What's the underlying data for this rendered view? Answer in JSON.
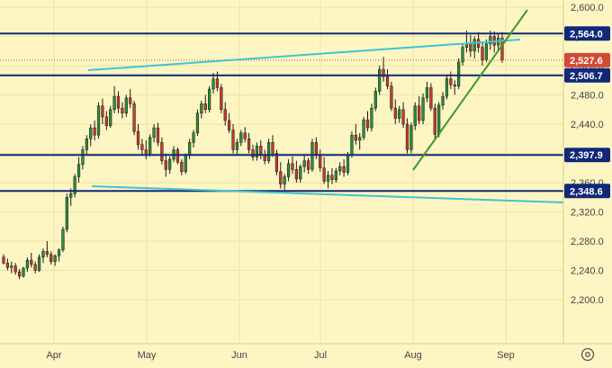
{
  "colors": {
    "background": "#fdf6c3",
    "grid": "#ece3a6",
    "up": "#2e8b3a",
    "down": "#c23b2a",
    "level": "#10287a",
    "channel": "#3fc4d4",
    "trend": "#3c9a2a",
    "current": "#d24a36"
  },
  "chart_data": {
    "type": "candlestick",
    "y_ticks": [
      "2,600.0",
      "2,560.0",
      "2,520.0",
      "2,480.0",
      "2,440.0",
      "2,400.0",
      "2,360.0",
      "2,320.0",
      "2,280.0",
      "2,240.0",
      "2,200.0"
    ],
    "x_ticks": [
      "Apr",
      "May",
      "Jun",
      "Jul",
      "Aug",
      "Sep"
    ],
    "ylim": [
      2170,
      2610
    ],
    "levels": [
      {
        "label": "2,564.0",
        "value": 2564.0
      },
      {
        "label": "2,506.7",
        "value": 2506.7
      },
      {
        "label": "2,397.9",
        "value": 2397.9
      },
      {
        "label": "2,348.6",
        "value": 2348.6
      }
    ],
    "current_price": {
      "label": "2,527.6",
      "value": 2527.6
    },
    "candles": [
      [
        2258,
        2262,
        2248,
        2250
      ],
      [
        2250,
        2256,
        2240,
        2244
      ],
      [
        2244,
        2252,
        2236,
        2246
      ],
      [
        2246,
        2250,
        2234,
        2238
      ],
      [
        2238,
        2242,
        2228,
        2232
      ],
      [
        2232,
        2245,
        2230,
        2243
      ],
      [
        2243,
        2258,
        2238,
        2254
      ],
      [
        2254,
        2264,
        2244,
        2248
      ],
      [
        2248,
        2252,
        2236,
        2240
      ],
      [
        2240,
        2262,
        2238,
        2258
      ],
      [
        2258,
        2270,
        2250,
        2266
      ],
      [
        2266,
        2280,
        2258,
        2262
      ],
      [
        2262,
        2266,
        2248,
        2252
      ],
      [
        2252,
        2262,
        2246,
        2260
      ],
      [
        2260,
        2270,
        2252,
        2268
      ],
      [
        2268,
        2300,
        2265,
        2296
      ],
      [
        2296,
        2345,
        2292,
        2340
      ],
      [
        2340,
        2352,
        2328,
        2345
      ],
      [
        2345,
        2372,
        2340,
        2368
      ],
      [
        2368,
        2395,
        2360,
        2385
      ],
      [
        2385,
        2410,
        2378,
        2405
      ],
      [
        2405,
        2425,
        2398,
        2420
      ],
      [
        2420,
        2440,
        2410,
        2435
      ],
      [
        2435,
        2445,
        2418,
        2425
      ],
      [
        2425,
        2470,
        2420,
        2465
      ],
      [
        2465,
        2475,
        2440,
        2450
      ],
      [
        2450,
        2458,
        2432,
        2438
      ],
      [
        2438,
        2465,
        2435,
        2460
      ],
      [
        2460,
        2492,
        2455,
        2478
      ],
      [
        2478,
        2485,
        2455,
        2462
      ],
      [
        2462,
        2470,
        2448,
        2455
      ],
      [
        2455,
        2480,
        2450,
        2476
      ],
      [
        2476,
        2488,
        2462,
        2468
      ],
      [
        2468,
        2472,
        2425,
        2430
      ],
      [
        2430,
        2440,
        2405,
        2412
      ],
      [
        2412,
        2420,
        2398,
        2405
      ],
      [
        2405,
        2418,
        2392,
        2400
      ],
      [
        2400,
        2426,
        2396,
        2422
      ],
      [
        2422,
        2440,
        2415,
        2435
      ],
      [
        2435,
        2442,
        2410,
        2415
      ],
      [
        2415,
        2422,
        2385,
        2390
      ],
      [
        2390,
        2400,
        2368,
        2378
      ],
      [
        2378,
        2396,
        2372,
        2392
      ],
      [
        2392,
        2410,
        2388,
        2405
      ],
      [
        2405,
        2408,
        2385,
        2388
      ],
      [
        2388,
        2392,
        2370,
        2375
      ],
      [
        2375,
        2400,
        2372,
        2398
      ],
      [
        2398,
        2420,
        2392,
        2415
      ],
      [
        2415,
        2432,
        2408,
        2428
      ],
      [
        2428,
        2460,
        2424,
        2455
      ],
      [
        2455,
        2472,
        2448,
        2468
      ],
      [
        2468,
        2480,
        2455,
        2460
      ],
      [
        2460,
        2492,
        2456,
        2488
      ],
      [
        2488,
        2510,
        2482,
        2502
      ],
      [
        2502,
        2512,
        2485,
        2490
      ],
      [
        2490,
        2495,
        2455,
        2460
      ],
      [
        2460,
        2470,
        2438,
        2445
      ],
      [
        2445,
        2455,
        2428,
        2432
      ],
      [
        2432,
        2440,
        2400,
        2405
      ],
      [
        2405,
        2420,
        2398,
        2415
      ],
      [
        2415,
        2432,
        2410,
        2428
      ],
      [
        2428,
        2436,
        2415,
        2420
      ],
      [
        2420,
        2428,
        2400,
        2405
      ],
      [
        2405,
        2412,
        2390,
        2395
      ],
      [
        2395,
        2415,
        2390,
        2410
      ],
      [
        2410,
        2418,
        2392,
        2398
      ],
      [
        2398,
        2405,
        2385,
        2390
      ],
      [
        2390,
        2420,
        2386,
        2415
      ],
      [
        2415,
        2425,
        2395,
        2400
      ],
      [
        2400,
        2405,
        2370,
        2375
      ],
      [
        2375,
        2388,
        2352,
        2358
      ],
      [
        2358,
        2372,
        2350,
        2368
      ],
      [
        2368,
        2392,
        2362,
        2386
      ],
      [
        2386,
        2396,
        2372,
        2378
      ],
      [
        2378,
        2390,
        2360,
        2365
      ],
      [
        2365,
        2385,
        2360,
        2382
      ],
      [
        2382,
        2398,
        2374,
        2390
      ],
      [
        2390,
        2394,
        2372,
        2378
      ],
      [
        2378,
        2420,
        2375,
        2415
      ],
      [
        2415,
        2422,
        2392,
        2398
      ],
      [
        2398,
        2405,
        2375,
        2380
      ],
      [
        2380,
        2395,
        2358,
        2362
      ],
      [
        2362,
        2376,
        2352,
        2370
      ],
      [
        2370,
        2380,
        2358,
        2364
      ],
      [
        2364,
        2380,
        2360,
        2376
      ],
      [
        2376,
        2388,
        2370,
        2382
      ],
      [
        2382,
        2392,
        2368,
        2374
      ],
      [
        2374,
        2402,
        2370,
        2398
      ],
      [
        2398,
        2430,
        2394,
        2425
      ],
      [
        2425,
        2440,
        2412,
        2418
      ],
      [
        2418,
        2428,
        2405,
        2422
      ],
      [
        2422,
        2450,
        2418,
        2446
      ],
      [
        2446,
        2458,
        2430,
        2435
      ],
      [
        2435,
        2468,
        2430,
        2462
      ],
      [
        2462,
        2490,
        2458,
        2485
      ],
      [
        2485,
        2520,
        2480,
        2515
      ],
      [
        2515,
        2532,
        2498,
        2505
      ],
      [
        2505,
        2515,
        2488,
        2492
      ],
      [
        2492,
        2498,
        2458,
        2462
      ],
      [
        2462,
        2474,
        2440,
        2448
      ],
      [
        2448,
        2465,
        2442,
        2460
      ],
      [
        2460,
        2470,
        2435,
        2440
      ],
      [
        2440,
        2448,
        2400,
        2405
      ],
      [
        2405,
        2442,
        2400,
        2438
      ],
      [
        2438,
        2470,
        2432,
        2465
      ],
      [
        2465,
        2478,
        2440,
        2445
      ],
      [
        2445,
        2482,
        2440,
        2476
      ],
      [
        2476,
        2498,
        2470,
        2490
      ],
      [
        2490,
        2496,
        2458,
        2462
      ],
      [
        2462,
        2468,
        2420,
        2426
      ],
      [
        2426,
        2470,
        2422,
        2466
      ],
      [
        2466,
        2484,
        2460,
        2478
      ],
      [
        2478,
        2508,
        2474,
        2502
      ],
      [
        2502,
        2512,
        2488,
        2494
      ],
      [
        2494,
        2500,
        2480,
        2492
      ],
      [
        2492,
        2530,
        2488,
        2525
      ],
      [
        2525,
        2550,
        2520,
        2545
      ],
      [
        2545,
        2568,
        2538,
        2550
      ],
      [
        2550,
        2562,
        2532,
        2540
      ],
      [
        2540,
        2560,
        2530,
        2556
      ],
      [
        2556,
        2566,
        2538,
        2545
      ],
      [
        2545,
        2552,
        2520,
        2528
      ],
      [
        2528,
        2556,
        2525,
        2550
      ],
      [
        2550,
        2568,
        2542,
        2560
      ],
      [
        2560,
        2567,
        2538,
        2548
      ],
      [
        2548,
        2565,
        2540,
        2558
      ],
      [
        2558,
        2566,
        2524,
        2527.6
      ]
    ]
  }
}
